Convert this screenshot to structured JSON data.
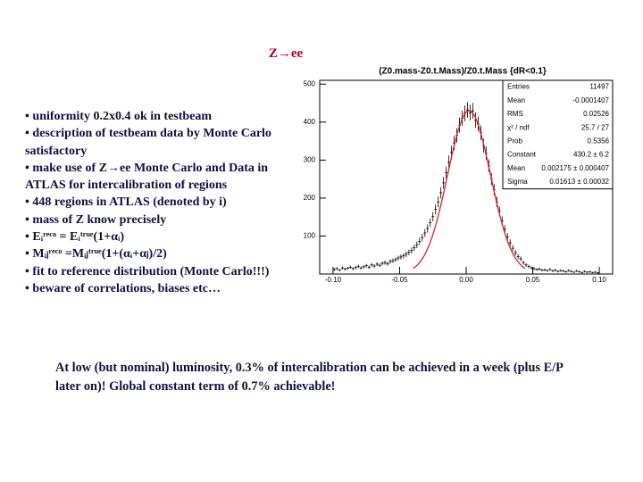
{
  "title": "Z→ee",
  "bullets": [
    "• uniformity 0.2x0.4 ok in testbeam",
    "• description of testbeam data by Monte Carlo satisfactory",
    "• make use of Z→ee Monte Carlo and Data in ATLAS for intercalibration of regions",
    "• 448 regions in ATLAS (denoted by i)",
    "• mass of Z know precisely",
    "• Eᵢʳᵉᶜᵒ = Eᵢᵗʳᵘᵉ(1+αᵢ)",
    "• Mᵢⱼʳᵉᶜᵒ =Mᵢⱼᵗʳᵘᵉ(1+(αᵢ+αⱼ)/2)",
    "• fit to reference distribution (Monte Carlo!!!)",
    "• beware of correlations, biases etc…"
  ],
  "conclusion": "At low (but nominal) luminosity, 0.3% of intercalibration can be achieved in a week (plus E/P later on)! Global constant term of 0.7% achievable!",
  "chart_data": {
    "type": "histogram",
    "title": "(Z0.mass-Z0.t.Mass)/Z0.t.Mass {dR<0.1}",
    "bins": [
      -0.1,
      -0.098,
      -0.096,
      -0.094,
      -0.092,
      -0.09,
      -0.088,
      -0.086,
      -0.084,
      -0.082,
      -0.08,
      -0.078,
      -0.076,
      -0.074,
      -0.072,
      -0.07,
      -0.068,
      -0.066,
      -0.064,
      -0.062,
      -0.06,
      -0.058,
      -0.056,
      -0.054,
      -0.052,
      -0.05,
      -0.048,
      -0.046,
      -0.044,
      -0.042,
      -0.04,
      -0.038,
      -0.036,
      -0.034,
      -0.032,
      -0.03,
      -0.028,
      -0.026,
      -0.024,
      -0.022,
      -0.02,
      -0.018,
      -0.016,
      -0.014,
      -0.012,
      -0.01,
      -0.008,
      -0.006,
      -0.004,
      -0.002,
      0,
      0.002,
      0.004,
      0.006,
      0.008,
      0.01,
      0.012,
      0.014,
      0.016,
      0.018,
      0.02,
      0.022,
      0.024,
      0.026,
      0.028,
      0.03,
      0.032,
      0.034,
      0.036,
      0.038,
      0.04,
      0.042,
      0.044,
      0.046,
      0.048,
      0.05,
      0.052,
      0.054,
      0.056,
      0.058,
      0.06,
      0.062,
      0.064,
      0.066,
      0.068,
      0.07,
      0.072,
      0.074,
      0.076,
      0.078,
      0.08,
      0.082,
      0.084,
      0.086,
      0.088,
      0.09,
      0.092,
      0.094,
      0.096,
      0.098,
      0.1
    ],
    "values": [
      12,
      14,
      10,
      16,
      13,
      15,
      18,
      14,
      17,
      20,
      16,
      19,
      22,
      18,
      24,
      21,
      26,
      23,
      28,
      30,
      27,
      33,
      35,
      38,
      42,
      45,
      48,
      52,
      57,
      62,
      69,
      77,
      86,
      96,
      108,
      120,
      135,
      151,
      170,
      190,
      214,
      240,
      267,
      295,
      320,
      345,
      365,
      392,
      410,
      423,
      432,
      425,
      430,
      405,
      395,
      372,
      338,
      318,
      285,
      250,
      222,
      190,
      165,
      140,
      118,
      98,
      82,
      68,
      56,
      46,
      40,
      30,
      24,
      20,
      16,
      14,
      12,
      13,
      10,
      11,
      9,
      12,
      8,
      10,
      7,
      9,
      8,
      6,
      9,
      7,
      5,
      8,
      6,
      4,
      7,
      5,
      6,
      4,
      5,
      3
    ],
    "color": "#000000",
    "fit_color": "#e02020",
    "xlim": [
      -0.11,
      0.11
    ],
    "ylim": [
      0,
      510
    ],
    "xticks": [
      {
        "value": -0.1,
        "label": "-0.10"
      },
      {
        "value": -0.05,
        "label": "-0.05"
      },
      {
        "value": 0,
        "label": "0.00"
      },
      {
        "value": 0.05,
        "label": "0.05"
      },
      {
        "value": 0.1,
        "label": "0.10"
      }
    ],
    "yticks": [
      100,
      200,
      300,
      400,
      500
    ],
    "stats": [
      [
        "Entries",
        "11497"
      ],
      [
        "Mean",
        "-0.0001407"
      ],
      [
        "RMS",
        "0.02526"
      ],
      [
        "χ² / ndf",
        "25.7 / 27"
      ],
      [
        "Prob",
        "0.5356"
      ],
      [
        "Constant",
        "430.2 ± 6.2"
      ],
      [
        "Mean",
        "0.002175 ± 0.000407"
      ],
      [
        "Sigma",
        "0.01613 ± 0.00032"
      ]
    ]
  }
}
